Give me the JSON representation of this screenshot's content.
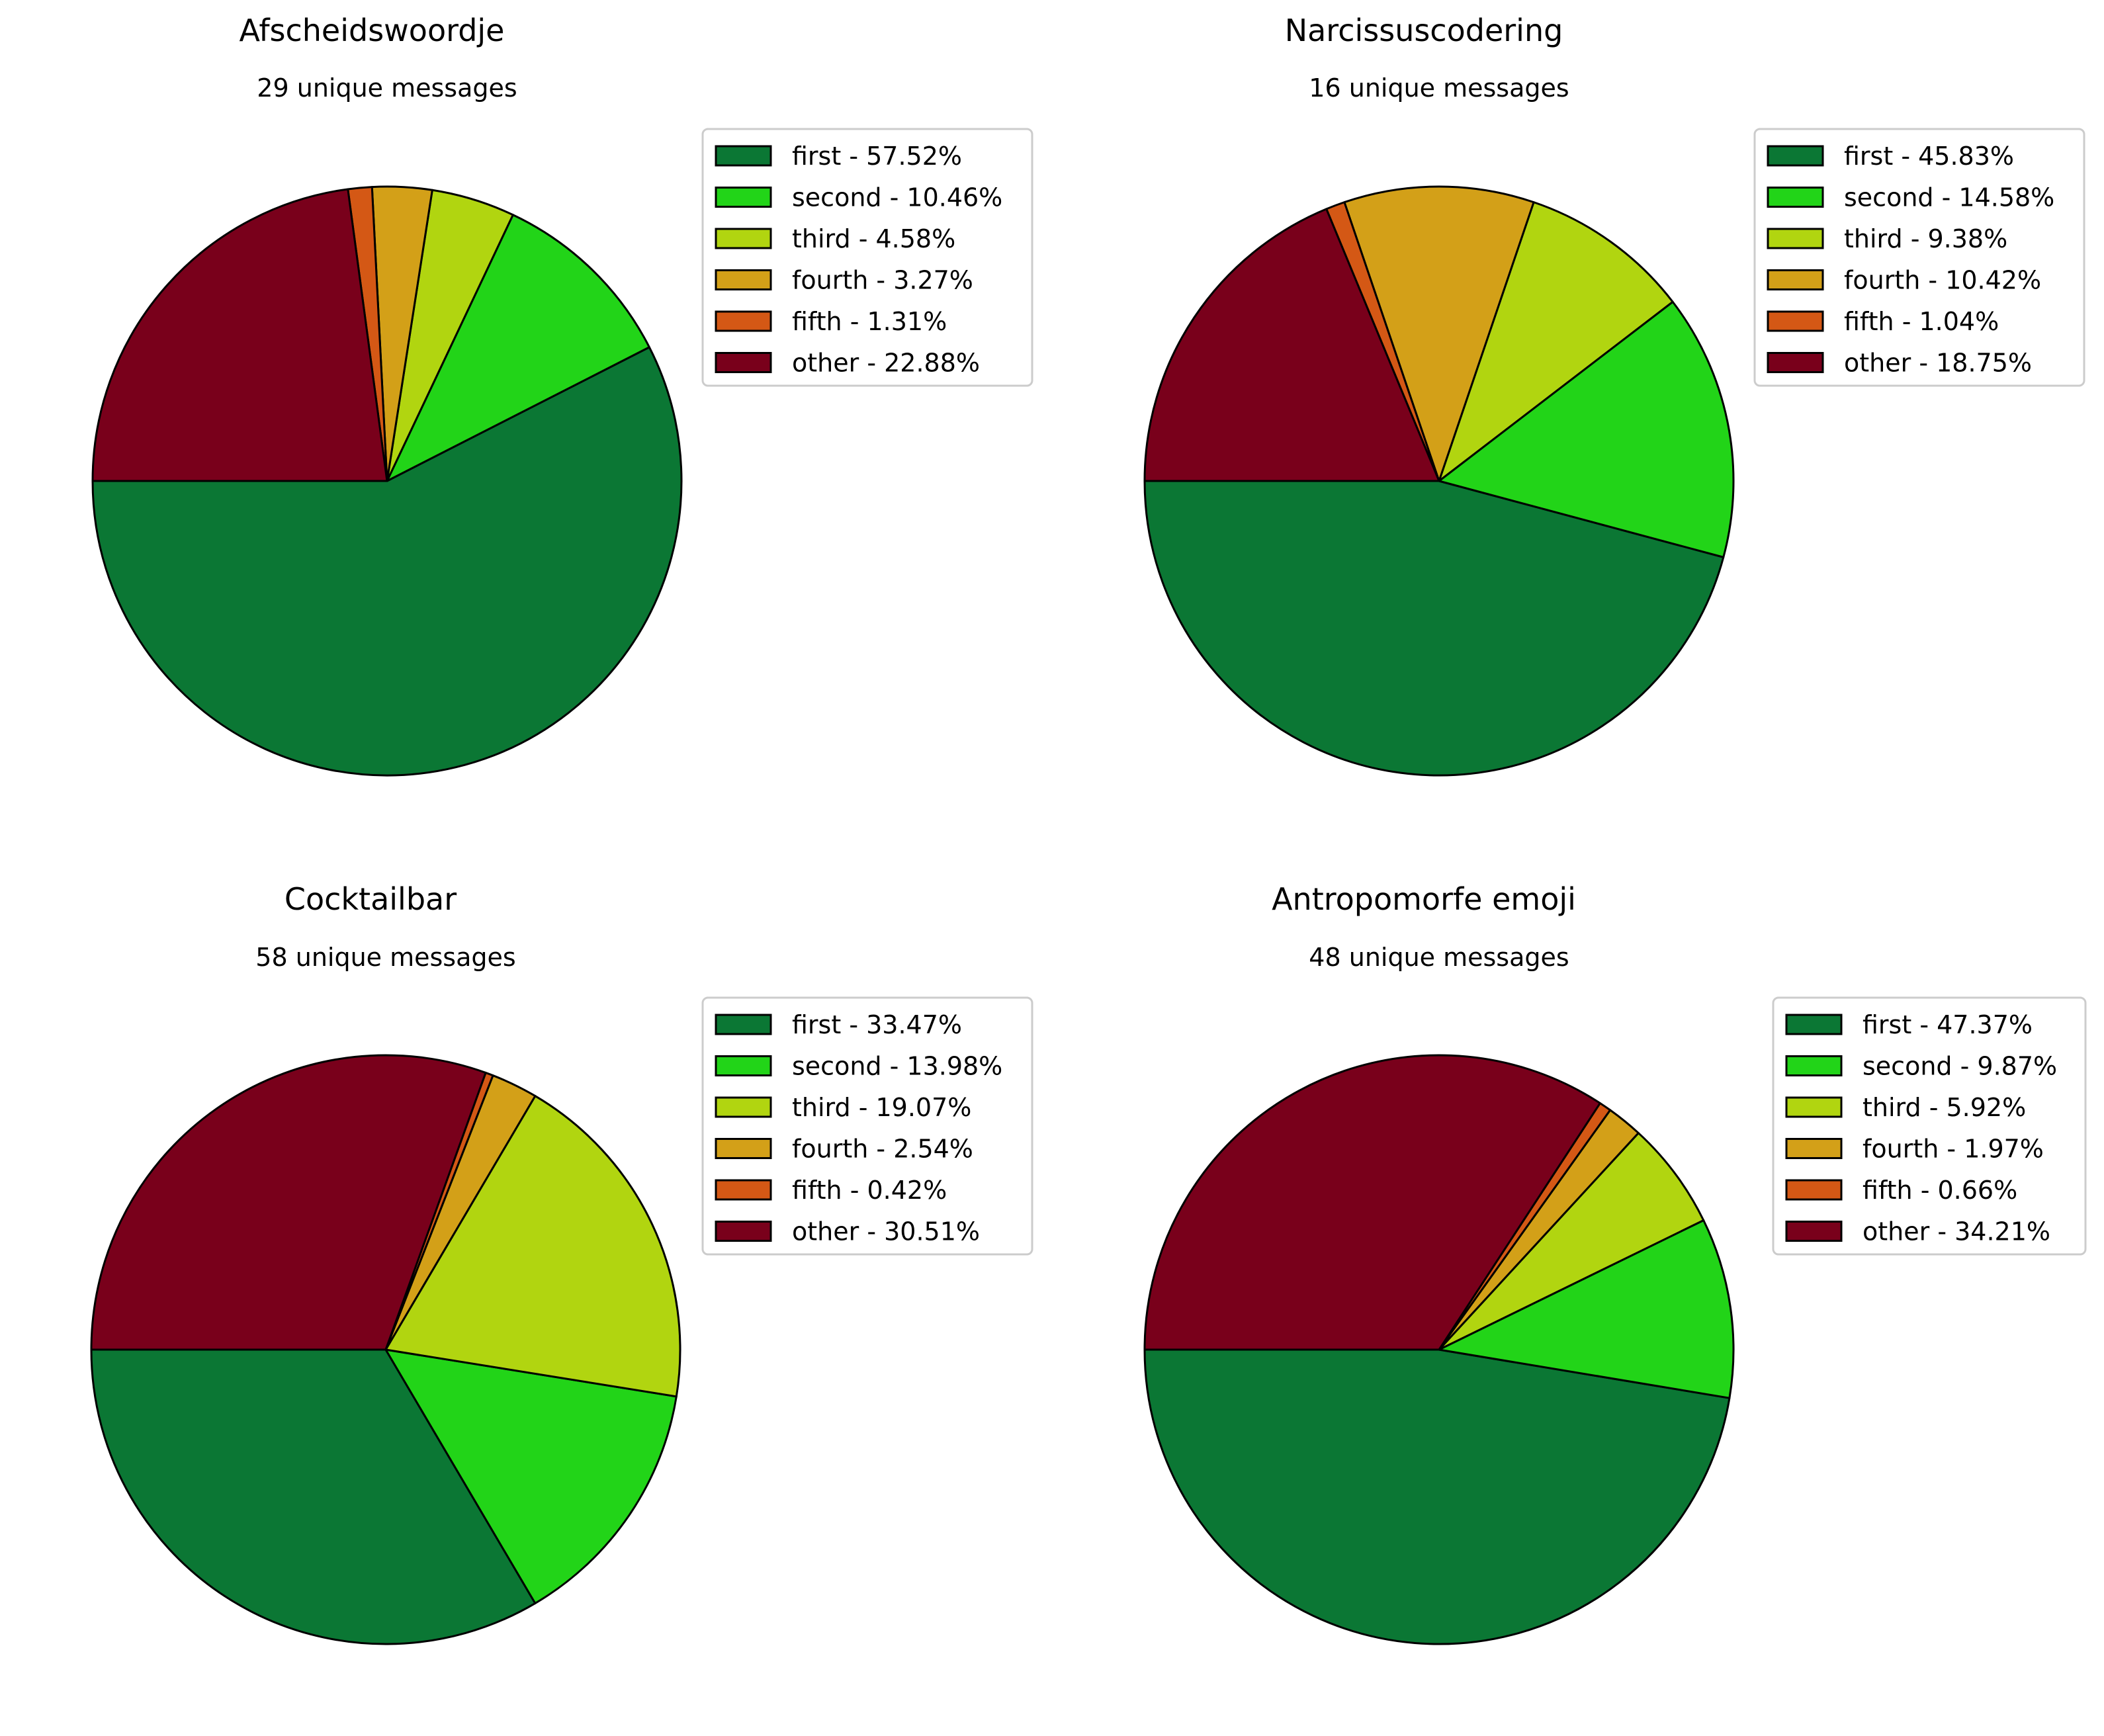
{
  "figure": {
    "background": "#ffffff",
    "edge_color": "#000000",
    "legend_frame_color": "#cccccc"
  },
  "slice_colors": {
    "first": "#0b7734",
    "second": "#22d418",
    "third": "#b1d510",
    "fourth": "#d3a018",
    "fifth": "#d45815",
    "other": "#79001b"
  },
  "chart_data": [
    {
      "type": "pie",
      "title": "Afscheidswoordje",
      "subtitle": "29 unique messages",
      "start_angle_deg": 180,
      "direction": "counterclockwise",
      "legend_position": "upper-right-outside",
      "labels": [
        "first",
        "second",
        "third",
        "fourth",
        "fifth",
        "other"
      ],
      "values": [
        57.52,
        10.46,
        4.58,
        3.27,
        1.31,
        22.88
      ],
      "legend_entries": [
        "first - 57.52%",
        "second - 10.46%",
        "third - 4.58%",
        "fourth - 3.27%",
        "fifth - 1.31%",
        "other - 22.88%"
      ]
    },
    {
      "type": "pie",
      "title": "Narcissuscodering",
      "subtitle": "16 unique messages",
      "start_angle_deg": 180,
      "direction": "counterclockwise",
      "legend_position": "upper-right-outside",
      "labels": [
        "first",
        "second",
        "third",
        "fourth",
        "fifth",
        "other"
      ],
      "values": [
        45.83,
        14.58,
        9.38,
        10.42,
        1.04,
        18.75
      ],
      "legend_entries": [
        "first - 45.83%",
        "second - 14.58%",
        "third - 9.38%",
        "fourth - 10.42%",
        "fifth - 1.04%",
        "other - 18.75%"
      ]
    },
    {
      "type": "pie",
      "title": "Cocktailbar",
      "subtitle": "58 unique messages",
      "start_angle_deg": 180,
      "direction": "counterclockwise",
      "legend_position": "upper-right-outside",
      "labels": [
        "first",
        "second",
        "third",
        "fourth",
        "fifth",
        "other"
      ],
      "values": [
        33.47,
        13.98,
        19.07,
        2.54,
        0.42,
        30.51
      ],
      "legend_entries": [
        "first - 33.47%",
        "second - 13.98%",
        "third - 19.07%",
        "fourth - 2.54%",
        "fifth - 0.42%",
        "other - 30.51%"
      ]
    },
    {
      "type": "pie",
      "title": "Antropomorfe emoji",
      "subtitle": "48 unique messages",
      "start_angle_deg": 180,
      "direction": "counterclockwise",
      "legend_position": "upper-right-outside",
      "labels": [
        "first",
        "second",
        "third",
        "fourth",
        "fifth",
        "other"
      ],
      "values": [
        47.37,
        9.87,
        5.92,
        1.97,
        0.66,
        34.21
      ],
      "legend_entries": [
        "first - 47.37%",
        "second - 9.87%",
        "third - 5.92%",
        "fourth - 1.97%",
        "fifth - 0.66%",
        "other - 34.21%"
      ]
    }
  ]
}
